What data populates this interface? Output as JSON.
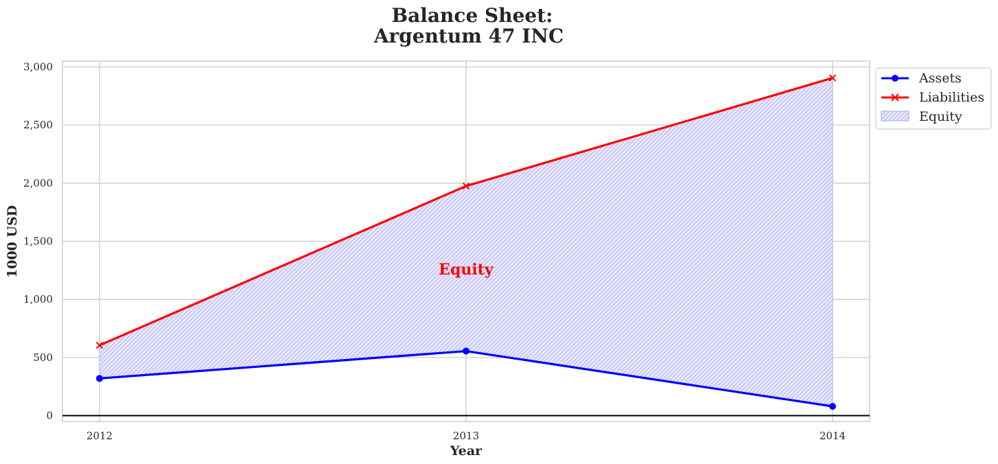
{
  "chart_data": {
    "type": "line",
    "title_line1": "Balance Sheet:",
    "title_line2": "Argentum 47 INC",
    "xlabel": "Year",
    "ylabel": "1000 USD",
    "categories": [
      "2012",
      "2013",
      "2014"
    ],
    "ylim": [
      -50,
      3050
    ],
    "yticks": [
      0,
      500,
      1000,
      1500,
      2000,
      2500,
      3000
    ],
    "ytick_labels": [
      "0",
      "500",
      "1,000",
      "1,500",
      "2,000",
      "2,500",
      "3,000"
    ],
    "grid": true,
    "legend_position": "outside-top-right",
    "series": [
      {
        "name": "Assets",
        "values": [
          320,
          555,
          80
        ],
        "color": "#0000ff",
        "marker": "circle"
      },
      {
        "name": "Liabilities",
        "values": [
          605,
          1975,
          2905
        ],
        "color": "#ff0000",
        "marker": "x"
      }
    ],
    "fill": {
      "name": "Equity",
      "between": [
        "Assets",
        "Liabilities"
      ],
      "color": "#ccccff",
      "hatch": true
    },
    "annotation": {
      "text": "Equity",
      "x": "2013",
      "y": 1260,
      "color": "#ff0000"
    },
    "legend": [
      "Assets",
      "Liabilities",
      "Equity"
    ]
  }
}
